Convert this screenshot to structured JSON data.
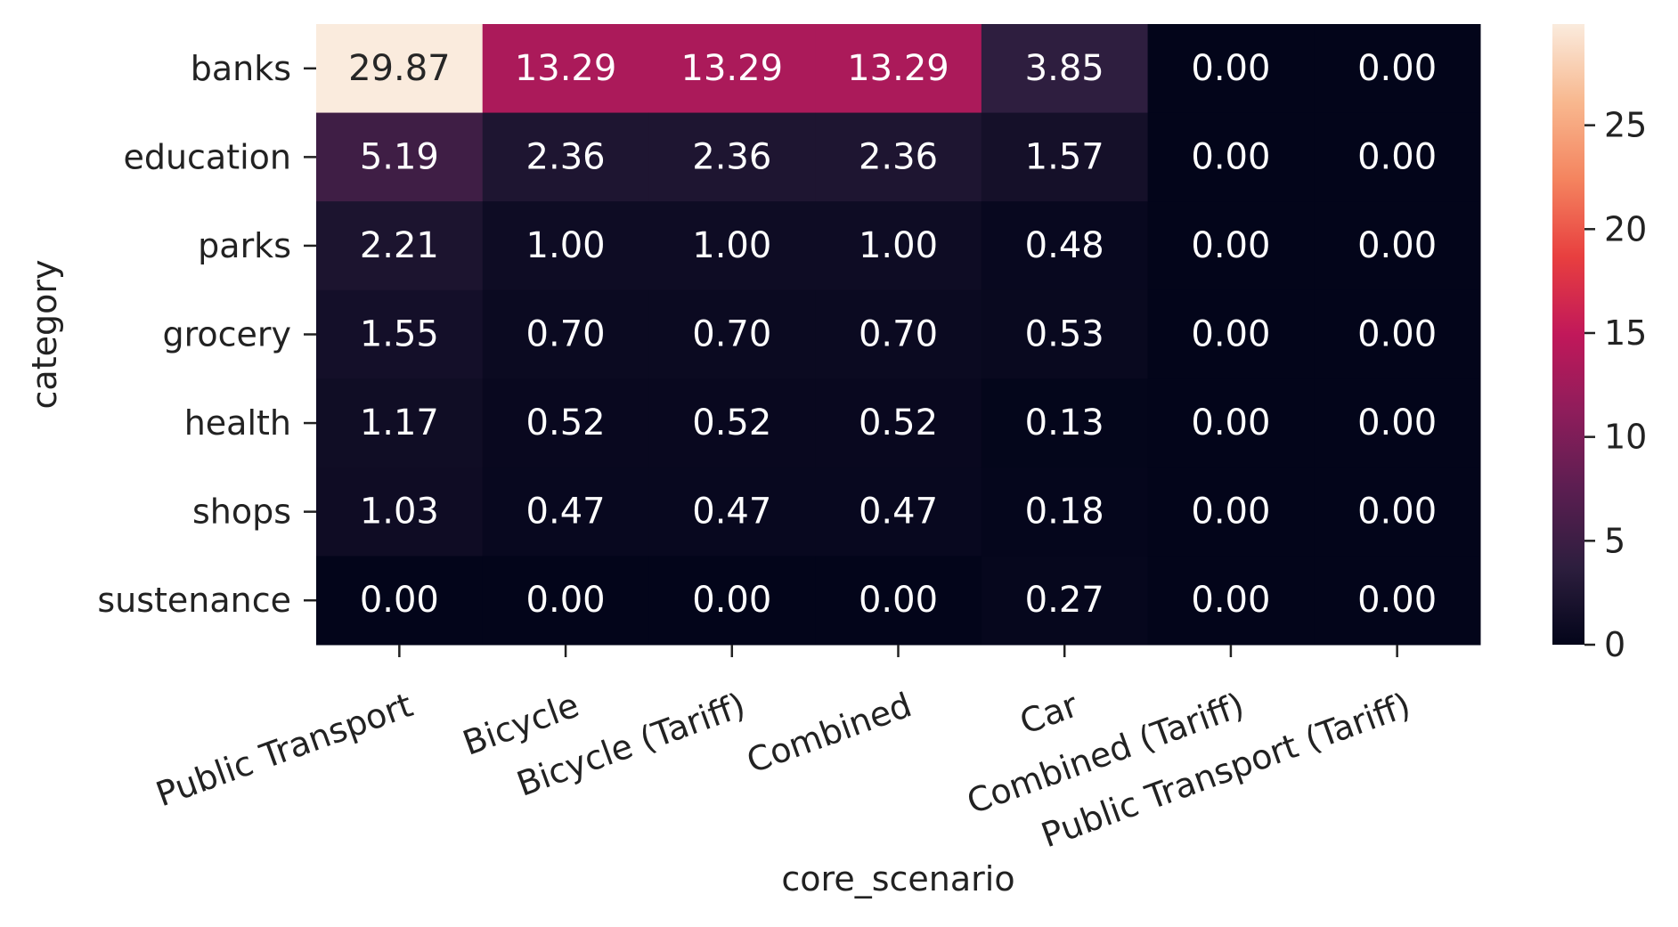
{
  "chart_data": {
    "type": "heatmap",
    "title": "",
    "xlabel": "core_scenario",
    "ylabel": "category",
    "x_categories": [
      "Public Transport",
      "Bicycle",
      "Bicycle (Tariff)",
      "Combined",
      "Car",
      "Combined (Tariff)",
      "Public Transport (Tariff)"
    ],
    "y_categories": [
      "banks",
      "education",
      "parks",
      "grocery",
      "health",
      "shops",
      "sustenance"
    ],
    "values": [
      [
        29.87,
        13.29,
        13.29,
        13.29,
        3.85,
        0.0,
        0.0
      ],
      [
        5.19,
        2.36,
        2.36,
        2.36,
        1.57,
        0.0,
        0.0
      ],
      [
        2.21,
        1.0,
        1.0,
        1.0,
        0.48,
        0.0,
        0.0
      ],
      [
        1.55,
        0.7,
        0.7,
        0.7,
        0.53,
        0.0,
        0.0
      ],
      [
        1.17,
        0.52,
        0.52,
        0.52,
        0.13,
        0.0,
        0.0
      ],
      [
        1.03,
        0.47,
        0.47,
        0.47,
        0.18,
        0.0,
        0.0
      ],
      [
        0.0,
        0.0,
        0.0,
        0.0,
        0.27,
        0.0,
        0.0
      ]
    ],
    "value_format_decimals": 2,
    "colorbar": {
      "range": [
        0,
        29.87
      ],
      "ticks": [
        0,
        5,
        10,
        15,
        20,
        25
      ],
      "colormap": "rocket",
      "stops": [
        "#03051a",
        "#2d1e3e",
        "#5b1e51",
        "#8e1d5b",
        "#c1185a",
        "#e83f3f",
        "#f4845f",
        "#f8b88f",
        "#faebdd"
      ]
    },
    "legend": "colorbar-right",
    "grid": false
  }
}
